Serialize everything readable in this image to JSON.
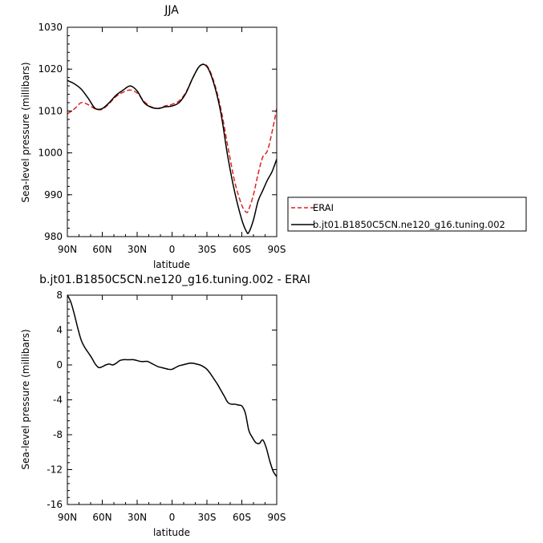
{
  "chart_data": [
    {
      "type": "line",
      "title": "JJA",
      "xlabel": "latitude",
      "ylabel": "Sea-level pressure (millibars)",
      "xlim": [
        90,
        -90
      ],
      "ylim": [
        980,
        1030
      ],
      "xticks": [
        90,
        60,
        30,
        0,
        -30,
        -60,
        -90
      ],
      "xtick_labels": [
        "90N",
        "60N",
        "30N",
        "0",
        "30S",
        "60S",
        "90S"
      ],
      "yticks": [
        980,
        990,
        1000,
        1010,
        1020,
        1030
      ],
      "ytick_labels": [
        "980",
        "990",
        "1000",
        "1010",
        "1020",
        "1030"
      ],
      "legend_position": "right",
      "series": [
        {
          "name": "ERAI",
          "color": "#e0211d",
          "dash": true,
          "x": [
            90,
            84,
            78,
            72,
            66,
            60,
            54,
            48,
            42,
            36,
            30,
            24,
            18,
            12,
            6,
            0,
            -6,
            -12,
            -18,
            -24,
            -30,
            -36,
            -42,
            -48,
            -54,
            -60,
            -64,
            -66,
            -70,
            -74,
            -78,
            -82,
            -86,
            -90
          ],
          "y": [
            1009.3,
            1010.5,
            1012.0,
            1011.5,
            1010.5,
            1010.4,
            1011.8,
            1013.5,
            1014.5,
            1015.0,
            1014.3,
            1012.3,
            1011.0,
            1010.6,
            1011.2,
            1011.6,
            1012.4,
            1014.5,
            1018.0,
            1020.8,
            1020.8,
            1017.0,
            1010.5,
            1001.5,
            993.0,
            987.5,
            985.8,
            986.5,
            990.0,
            995.0,
            999.0,
            1000.5,
            1005.0,
            1010.5
          ]
        },
        {
          "name": "b.jt01.B1850C5CN.ne120_g16.tuning.002",
          "color": "#000000",
          "dash": false,
          "x": [
            90,
            84,
            78,
            72,
            66,
            60,
            54,
            48,
            42,
            36,
            30,
            24,
            18,
            12,
            6,
            0,
            -6,
            -12,
            -18,
            -24,
            -30,
            -36,
            -42,
            -48,
            -54,
            -60,
            -64,
            -66,
            -70,
            -74,
            -78,
            -82,
            -86,
            -90
          ],
          "y": [
            1017.3,
            1016.5,
            1015.2,
            1013.0,
            1010.6,
            1010.6,
            1012.0,
            1013.8,
            1015.0,
            1016.0,
            1014.8,
            1012.0,
            1010.9,
            1010.6,
            1011.0,
            1011.2,
            1012.0,
            1014.3,
            1018.0,
            1020.8,
            1020.6,
            1016.5,
            1009.5,
            999.0,
            990.5,
            984.0,
            981.2,
            981.0,
            984.0,
            988.5,
            991.0,
            993.5,
            995.5,
            998.5
          ]
        }
      ]
    },
    {
      "type": "line",
      "title": "b.jt01.B1850C5CN.ne120_g16.tuning.002 - ERAI",
      "xlabel": "latitude",
      "ylabel": "Sea-level pressure (millibars)",
      "xlim": [
        90,
        -90
      ],
      "ylim": [
        -16,
        8
      ],
      "xticks": [
        90,
        60,
        30,
        0,
        -30,
        -60,
        -90
      ],
      "xtick_labels": [
        "90N",
        "60N",
        "30N",
        "0",
        "30S",
        "60S",
        "90S"
      ],
      "yticks": [
        -16,
        -12,
        -8,
        -4,
        0,
        4,
        8
      ],
      "ytick_labels": [
        "-16",
        "-12",
        "-8",
        "-4",
        "0",
        "4",
        "8"
      ],
      "series": [
        {
          "color": "#000000",
          "dash": false,
          "x": [
            90,
            87,
            84,
            81,
            78,
            75,
            72,
            69,
            66,
            63,
            60,
            57,
            54,
            51,
            48,
            45,
            42,
            39,
            36,
            33,
            30,
            27,
            24,
            21,
            18,
            15,
            12,
            9,
            6,
            3,
            0,
            -3,
            -6,
            -9,
            -12,
            -15,
            -18,
            -21,
            -24,
            -27,
            -30,
            -33,
            -36,
            -39,
            -42,
            -45,
            -48,
            -51,
            -54,
            -57,
            -60,
            -63,
            -66,
            -69,
            -72,
            -75,
            -78,
            -81,
            -84,
            -87,
            -90
          ],
          "y": [
            8.0,
            7.2,
            5.8,
            4.2,
            2.8,
            2.0,
            1.4,
            0.8,
            0.1,
            -0.3,
            -0.2,
            0.0,
            0.1,
            0.0,
            0.2,
            0.5,
            0.6,
            0.6,
            0.6,
            0.6,
            0.5,
            0.4,
            0.4,
            0.4,
            0.2,
            0.0,
            -0.2,
            -0.3,
            -0.4,
            -0.5,
            -0.5,
            -0.3,
            -0.1,
            0.0,
            0.1,
            0.2,
            0.2,
            0.1,
            0.0,
            -0.2,
            -0.5,
            -1.0,
            -1.6,
            -2.2,
            -2.9,
            -3.6,
            -4.3,
            -4.5,
            -4.5,
            -4.6,
            -4.7,
            -5.5,
            -7.5,
            -8.3,
            -8.9,
            -9.0,
            -8.6,
            -9.5,
            -11.0,
            -12.2,
            -12.8
          ]
        }
      ]
    }
  ]
}
